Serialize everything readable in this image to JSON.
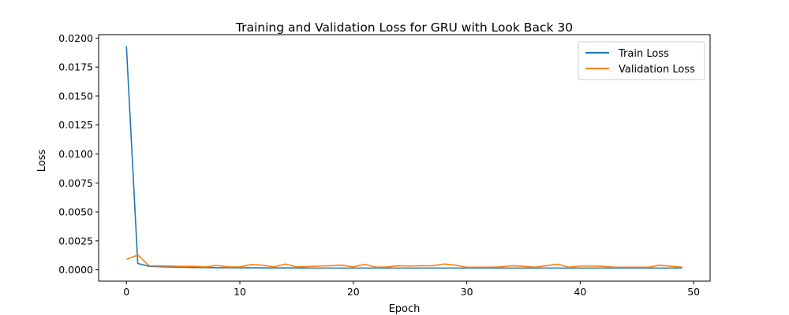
{
  "chart_data": {
    "type": "line",
    "title": "Training and Validation Loss for GRU with Look Back 30",
    "xlabel": "Epoch",
    "ylabel": "Loss",
    "xlim": [
      -2.45,
      51.45
    ],
    "ylim": [
      -0.00098,
      0.0203
    ],
    "xticks": [
      0,
      10,
      20,
      30,
      40,
      50
    ],
    "yticks": [
      "0.0000",
      "0.0025",
      "0.0050",
      "0.0075",
      "0.0100",
      "0.0125",
      "0.0150",
      "0.0175",
      "0.0200"
    ],
    "grid": false,
    "legend_position": "top-right",
    "x": [
      0,
      1,
      2,
      3,
      4,
      5,
      6,
      7,
      8,
      9,
      10,
      11,
      12,
      13,
      14,
      15,
      16,
      17,
      18,
      19,
      20,
      21,
      22,
      23,
      24,
      25,
      26,
      27,
      28,
      29,
      30,
      31,
      32,
      33,
      34,
      35,
      36,
      37,
      38,
      39,
      40,
      41,
      42,
      43,
      44,
      45,
      46,
      47,
      48,
      49
    ],
    "series": [
      {
        "name": "Train Loss",
        "color": "#1f77b4",
        "values": [
          0.0193,
          0.00055,
          0.0003,
          0.00026,
          0.00024,
          0.00022,
          0.0002,
          0.00019,
          0.00018,
          0.00018,
          0.00017,
          0.00017,
          0.00016,
          0.00016,
          0.00016,
          0.00016,
          0.00015,
          0.00015,
          0.00015,
          0.00015,
          0.00015,
          0.00015,
          0.00015,
          0.00015,
          0.00015,
          0.00015,
          0.00015,
          0.00015,
          0.00015,
          0.00015,
          0.00015,
          0.00015,
          0.00015,
          0.00015,
          0.00015,
          0.00015,
          0.00015,
          0.00015,
          0.00015,
          0.00015,
          0.00015,
          0.00015,
          0.00015,
          0.00015,
          0.00015,
          0.00015,
          0.00015,
          0.00015,
          0.00015,
          0.00015
        ]
      },
      {
        "name": "Validation Loss",
        "color": "#ff7f0e",
        "values": [
          0.0009,
          0.00128,
          0.00035,
          0.00033,
          0.00032,
          0.0003,
          0.0003,
          0.00025,
          0.00038,
          0.00025,
          0.00025,
          0.00045,
          0.0004,
          0.00025,
          0.0005,
          0.00025,
          0.00028,
          0.00032,
          0.00035,
          0.0004,
          0.00025,
          0.00048,
          0.00022,
          0.00025,
          0.00035,
          0.00032,
          0.00035,
          0.00035,
          0.0005,
          0.0004,
          0.00022,
          0.00022,
          0.00022,
          0.00025,
          0.00035,
          0.0003,
          0.00022,
          0.00035,
          0.00048,
          0.00022,
          0.00032,
          0.00032,
          0.0003,
          0.00022,
          0.00022,
          0.00022,
          0.00022,
          0.0004,
          0.0003,
          0.00022
        ]
      }
    ]
  }
}
